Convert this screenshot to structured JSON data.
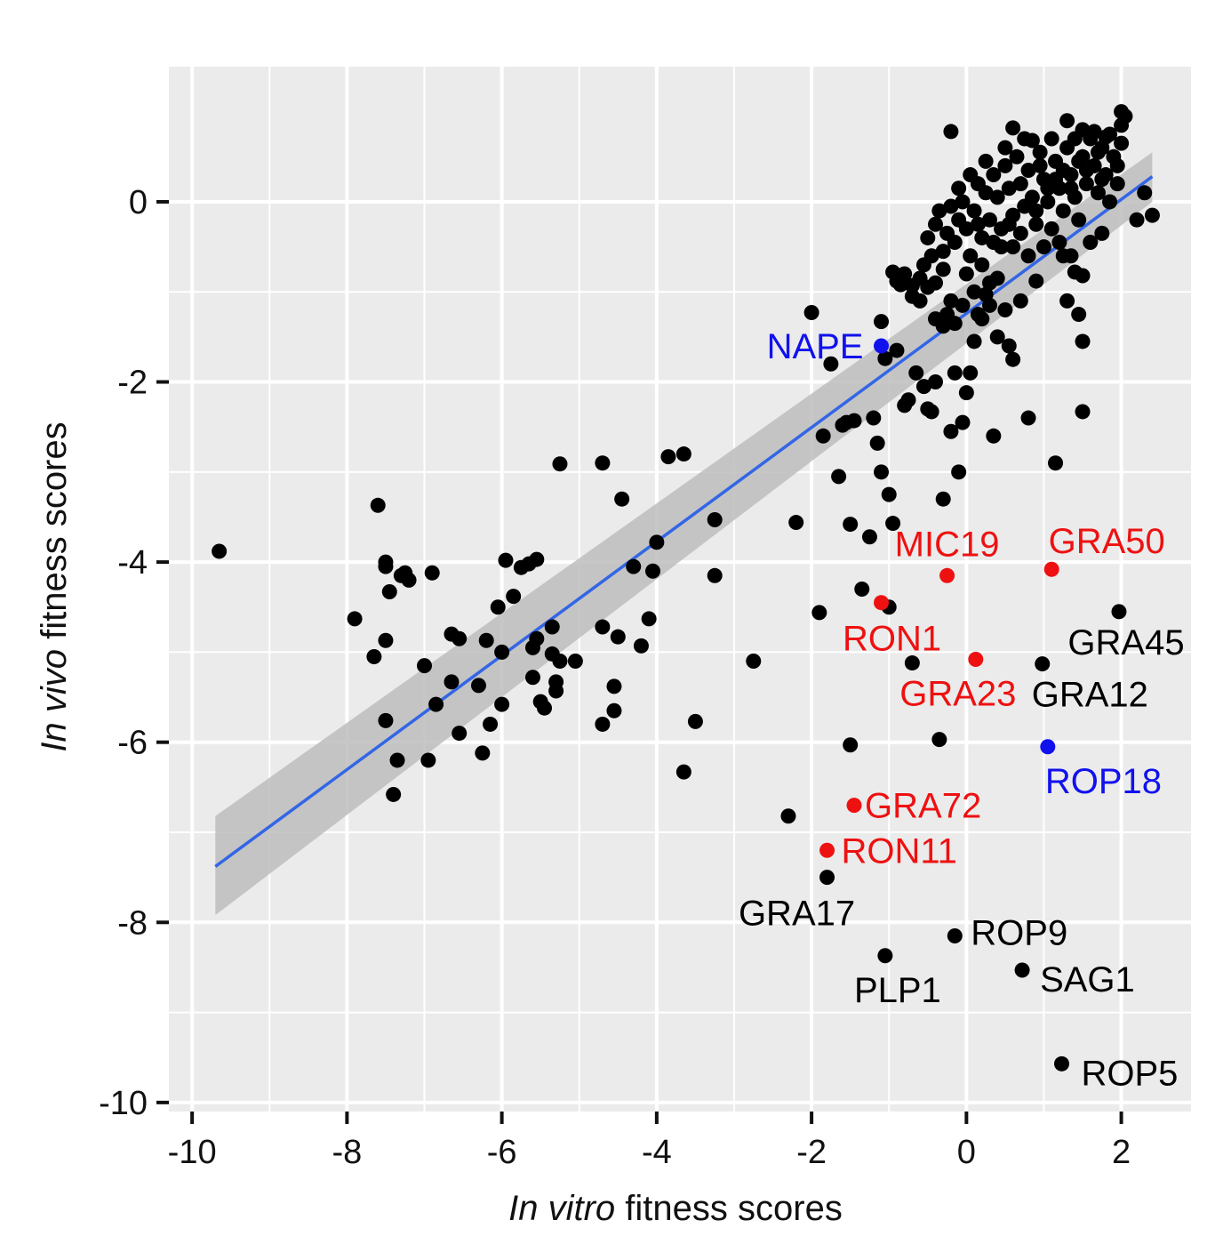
{
  "chart_data": {
    "type": "scatter",
    "title": "",
    "xlabel_italic": "In vitro",
    "xlabel_rest": " fitness scores",
    "ylabel_italic": "In vivo",
    "ylabel_rest": " fitness scores",
    "xlim": [
      -10.3,
      2.9
    ],
    "ylim": [
      -10.1,
      1.5
    ],
    "x_ticks": [
      -10,
      -8,
      -6,
      -4,
      -2,
      0,
      2
    ],
    "x_tick_labels": [
      "-10",
      "-8",
      "-6",
      "-4",
      "-2",
      "0",
      "2"
    ],
    "y_ticks": [
      -10,
      -8,
      -6,
      -4,
      -2,
      0
    ],
    "y_tick_labels": [
      "-10",
      "-8",
      "-6",
      "-4",
      "-2",
      "0"
    ],
    "grid": true,
    "colors": {
      "panel": "#ebebeb",
      "grid": "#ffffff",
      "points": "#000000",
      "fit_line": "#3366e6",
      "ribbon": "#bdbdbd",
      "red": "#ee1111",
      "blue": "#1111ee"
    },
    "fit": {
      "x": [
        -9.7,
        2.4
      ],
      "y": [
        -7.38,
        0.28
      ],
      "ribbon_upper": [
        -6.82,
        0.55
      ],
      "ribbon_lower": [
        -7.92,
        0.0
      ]
    },
    "points": [
      [
        -9.65,
        -3.88
      ],
      [
        -7.6,
        -3.37
      ],
      [
        -7.5,
        -4.0
      ],
      [
        -7.5,
        -4.05
      ],
      [
        -7.45,
        -4.33
      ],
      [
        -7.3,
        -4.15
      ],
      [
        -7.25,
        -4.12
      ],
      [
        -7.2,
        -4.2
      ],
      [
        -6.9,
        -4.12
      ],
      [
        -7.9,
        -4.63
      ],
      [
        -7.5,
        -4.87
      ],
      [
        -7.65,
        -5.05
      ],
      [
        -7.5,
        -5.76
      ],
      [
        -7.35,
        -6.2
      ],
      [
        -7.4,
        -6.58
      ],
      [
        -7.0,
        -5.15
      ],
      [
        -6.95,
        -6.2
      ],
      [
        -6.85,
        -5.58
      ],
      [
        -6.65,
        -4.8
      ],
      [
        -6.55,
        -4.85
      ],
      [
        -6.65,
        -5.33
      ],
      [
        -6.55,
        -5.9
      ],
      [
        -6.3,
        -5.37
      ],
      [
        -6.25,
        -6.12
      ],
      [
        -6.2,
        -4.87
      ],
      [
        -6.15,
        -5.8
      ],
      [
        -6.05,
        -4.5
      ],
      [
        -6.0,
        -5.0
      ],
      [
        -6.0,
        -5.58
      ],
      [
        -5.95,
        -3.98
      ],
      [
        -5.85,
        -4.38
      ],
      [
        -5.75,
        -4.06
      ],
      [
        -5.65,
        -4.02
      ],
      [
        -5.55,
        -3.97
      ],
      [
        -5.6,
        -4.95
      ],
      [
        -5.55,
        -4.85
      ],
      [
        -5.6,
        -5.28
      ],
      [
        -5.5,
        -5.55
      ],
      [
        -5.45,
        -5.62
      ],
      [
        -5.35,
        -4.72
      ],
      [
        -5.35,
        -5.02
      ],
      [
        -5.3,
        -5.33
      ],
      [
        -5.25,
        -5.1
      ],
      [
        -5.3,
        -5.43
      ],
      [
        -5.25,
        -2.91
      ],
      [
        -5.05,
        -5.1
      ],
      [
        -4.7,
        -2.9
      ],
      [
        -4.7,
        -4.72
      ],
      [
        -4.7,
        -5.8
      ],
      [
        -4.55,
        -5.65
      ],
      [
        -4.55,
        -5.38
      ],
      [
        -4.5,
        -4.83
      ],
      [
        -4.45,
        -3.3
      ],
      [
        -4.3,
        -4.05
      ],
      [
        -4.2,
        -4.93
      ],
      [
        -4.1,
        -4.63
      ],
      [
        -4.05,
        -4.1
      ],
      [
        -4.0,
        -3.78
      ],
      [
        -3.85,
        -2.83
      ],
      [
        -3.65,
        -2.8
      ],
      [
        -3.65,
        -6.33
      ],
      [
        -3.5,
        -5.77
      ],
      [
        -3.25,
        -3.53
      ],
      [
        -3.25,
        -4.15
      ],
      [
        -2.75,
        -5.1
      ],
      [
        -2.3,
        -6.82
      ],
      [
        -2.2,
        -3.56
      ],
      [
        -2.0,
        -1.23
      ],
      [
        -1.9,
        -4.56
      ],
      [
        -1.85,
        -2.6
      ],
      [
        -1.75,
        -1.8
      ],
      [
        -1.65,
        -3.05
      ],
      [
        -1.6,
        -2.48
      ],
      [
        -1.55,
        -2.45
      ],
      [
        -1.5,
        -3.58
      ],
      [
        -1.5,
        -6.03
      ],
      [
        -1.45,
        -2.43
      ],
      [
        -1.35,
        -4.3
      ],
      [
        -1.25,
        -3.72
      ],
      [
        -1.2,
        -2.4
      ],
      [
        -1.15,
        -2.68
      ],
      [
        -1.1,
        -1.33
      ],
      [
        -1.1,
        -3.0
      ],
      [
        -1.05,
        -1.74
      ],
      [
        -1.0,
        -4.5
      ],
      [
        -1.0,
        -3.25
      ],
      [
        -0.95,
        -0.78
      ],
      [
        -0.95,
        -3.57
      ],
      [
        -0.9,
        -1.65
      ],
      [
        -0.9,
        -0.88
      ],
      [
        -0.85,
        -0.92
      ],
      [
        -0.8,
        -2.26
      ],
      [
        -0.75,
        -2.2
      ],
      [
        -0.7,
        -0.93
      ],
      [
        -0.7,
        -5.12
      ],
      [
        -0.65,
        -1.9
      ],
      [
        -0.6,
        -0.85
      ],
      [
        -0.55,
        -2.05
      ],
      [
        -0.5,
        -2.3
      ],
      [
        -0.45,
        -2.33
      ],
      [
        -0.4,
        -2.0
      ],
      [
        -0.4,
        -0.9
      ],
      [
        -0.35,
        -5.97
      ],
      [
        -0.3,
        -1.38
      ],
      [
        -0.3,
        -3.3
      ],
      [
        -0.25,
        -1.25
      ],
      [
        -0.2,
        -2.55
      ],
      [
        -0.15,
        -1.9
      ],
      [
        -0.1,
        -3.0
      ],
      [
        -0.05,
        -2.45
      ],
      [
        0.0,
        -2.12
      ],
      [
        0.05,
        -1.9
      ],
      [
        0.1,
        -1.55
      ],
      [
        0.2,
        -1.3
      ],
      [
        0.25,
        -1.03
      ],
      [
        0.3,
        -0.9
      ],
      [
        0.35,
        -2.6
      ],
      [
        0.4,
        -1.5
      ],
      [
        0.5,
        -1.2
      ],
      [
        0.55,
        -1.6
      ],
      [
        0.6,
        -1.75
      ],
      [
        0.7,
        -1.1
      ],
      [
        0.8,
        -2.4
      ],
      [
        0.9,
        -0.88
      ],
      [
        1.15,
        -2.9
      ],
      [
        1.25,
        -0.6
      ],
      [
        1.3,
        -1.1
      ],
      [
        1.4,
        -0.78
      ],
      [
        1.5,
        -0.82
      ],
      [
        1.45,
        -1.25
      ],
      [
        1.5,
        -1.55
      ],
      [
        1.5,
        -2.33
      ],
      [
        1.6,
        -0.45
      ],
      [
        1.75,
        -0.35
      ],
      [
        2.0,
        1.0
      ],
      [
        2.05,
        0.95
      ],
      [
        2.0,
        0.85
      ],
      [
        2.2,
        -0.2
      ],
      [
        2.3,
        0.1
      ],
      [
        2.4,
        -0.15
      ],
      [
        -0.2,
        0.78
      ],
      [
        0.6,
        0.82
      ],
      [
        0.85,
        0.68
      ],
      [
        1.3,
        0.9
      ],
      [
        1.5,
        0.8
      ],
      [
        1.65,
        0.78
      ],
      [
        1.8,
        0.72
      ],
      [
        -0.5,
        -0.4
      ],
      [
        -0.45,
        -0.6
      ],
      [
        -0.4,
        -0.25
      ],
      [
        -0.35,
        -0.1
      ],
      [
        -0.3,
        -0.55
      ],
      [
        -0.25,
        -0.35
      ],
      [
        -0.2,
        -0.05
      ],
      [
        -0.15,
        -0.45
      ],
      [
        -0.1,
        -0.2
      ],
      [
        -0.05,
        0.0
      ],
      [
        0.0,
        -0.3
      ],
      [
        0.05,
        -0.6
      ],
      [
        0.1,
        -0.1
      ],
      [
        0.15,
        0.2
      ],
      [
        0.2,
        -0.4
      ],
      [
        0.25,
        0.1
      ],
      [
        0.3,
        -0.2
      ],
      [
        0.35,
        0.3
      ],
      [
        0.4,
        0.05
      ],
      [
        0.45,
        -0.3
      ],
      [
        0.5,
        0.4
      ],
      [
        0.55,
        0.15
      ],
      [
        0.6,
        -0.15
      ],
      [
        0.65,
        0.5
      ],
      [
        0.7,
        0.2
      ],
      [
        0.75,
        -0.05
      ],
      [
        0.8,
        0.35
      ],
      [
        0.85,
        0.05
      ],
      [
        0.9,
        -0.25
      ],
      [
        0.95,
        0.55
      ],
      [
        1.0,
        0.25
      ],
      [
        1.05,
        0.0
      ],
      [
        1.1,
        -0.3
      ],
      [
        1.15,
        0.45
      ],
      [
        1.2,
        0.15
      ],
      [
        1.25,
        -0.1
      ],
      [
        1.3,
        0.6
      ],
      [
        1.35,
        0.3
      ],
      [
        1.4,
        0.05
      ],
      [
        1.45,
        -0.2
      ],
      [
        1.5,
        0.5
      ],
      [
        1.55,
        0.2
      ],
      [
        1.6,
        0.7
      ],
      [
        1.65,
        0.4
      ],
      [
        1.7,
        0.1
      ],
      [
        1.75,
        0.6
      ],
      [
        1.8,
        0.3
      ],
      [
        1.85,
        0.0
      ],
      [
        1.9,
        0.5
      ],
      [
        1.95,
        0.2
      ],
      [
        2.0,
        0.65
      ],
      [
        1.95,
        0.4
      ],
      [
        1.85,
        0.75
      ],
      [
        1.7,
        0.55
      ],
      [
        1.4,
        0.7
      ],
      [
        1.1,
        0.7
      ],
      [
        0.2,
        -0.7
      ],
      [
        0.0,
        -0.8
      ],
      [
        -0.3,
        -0.75
      ],
      [
        -0.5,
        -0.95
      ],
      [
        -0.6,
        -1.1
      ],
      [
        -0.2,
        -1.1
      ],
      [
        0.1,
        -1.0
      ],
      [
        0.4,
        -0.85
      ],
      [
        0.6,
        -0.5
      ],
      [
        0.8,
        -0.6
      ],
      [
        1.0,
        -0.5
      ],
      [
        -0.15,
        -1.35
      ],
      [
        -0.05,
        -1.15
      ],
      [
        0.15,
        -1.25
      ],
      [
        0.3,
        -1.15
      ],
      [
        -0.4,
        -1.3
      ],
      [
        -0.7,
        -1.05
      ],
      [
        -0.55,
        -0.7
      ],
      [
        -0.8,
        -0.8
      ],
      [
        0.45,
        -0.5
      ],
      [
        0.7,
        -0.35
      ],
      [
        1.2,
        -0.45
      ],
      [
        1.35,
        -0.6
      ],
      [
        0.25,
        0.45
      ],
      [
        0.5,
        0.6
      ],
      [
        0.75,
        0.7
      ],
      [
        0.95,
        0.4
      ],
      [
        1.15,
        0.25
      ],
      [
        1.35,
        0.15
      ],
      [
        1.55,
        0.35
      ],
      [
        1.75,
        0.25
      ],
      [
        0.05,
        0.3
      ],
      [
        -0.1,
        0.15
      ],
      [
        0.15,
        -0.25
      ],
      [
        0.35,
        -0.45
      ],
      [
        0.55,
        -0.25
      ],
      [
        0.9,
        -0.1
      ],
      [
        1.05,
        0.15
      ],
      [
        1.25,
        0.35
      ],
      [
        1.45,
        0.45
      ]
    ],
    "annotations": [
      {
        "label": "NAPE",
        "x": -1.1,
        "y": -1.6,
        "color": "blue",
        "anchor": "end",
        "dx": -20,
        "dy": 14
      },
      {
        "label": "ROP18",
        "x": 1.05,
        "y": -6.05,
        "color": "blue",
        "anchor": "start",
        "dx": -3,
        "dy": 52
      },
      {
        "label": "MIC19",
        "x": -0.25,
        "y": -4.15,
        "color": "red",
        "anchor": "middle",
        "dx": 0,
        "dy": -22
      },
      {
        "label": "GRA50",
        "x": 1.1,
        "y": -4.08,
        "color": "red",
        "anchor": "middle",
        "dx": 62,
        "dy": -18
      },
      {
        "label": "RON1",
        "x": -1.1,
        "y": -4.45,
        "color": "red",
        "anchor": "middle",
        "dx": 12,
        "dy": 54
      },
      {
        "label": "GRA23",
        "x": 0.12,
        "y": -5.08,
        "color": "red",
        "anchor": "middle",
        "dx": -20,
        "dy": 52
      },
      {
        "label": "GRA72",
        "x": -1.45,
        "y": -6.7,
        "color": "red",
        "anchor": "start",
        "dx": 12,
        "dy": 14
      },
      {
        "label": "RON11",
        "x": -1.8,
        "y": -7.2,
        "color": "red",
        "anchor": "start",
        "dx": 16,
        "dy": 14
      },
      {
        "label": "GRA45",
        "x": 1.97,
        "y": -4.55,
        "color": "black",
        "anchor": "middle",
        "dx": 8,
        "dy": 48
      },
      {
        "label": "GRA12",
        "x": 0.98,
        "y": -5.13,
        "color": "black",
        "anchor": "start",
        "dx": -12,
        "dy": 48
      },
      {
        "label": "GRA17",
        "x": -1.8,
        "y": -7.5,
        "color": "black",
        "anchor": "middle",
        "dx": -34,
        "dy": 54
      },
      {
        "label": "ROP9",
        "x": -0.15,
        "y": -8.15,
        "color": "black",
        "anchor": "start",
        "dx": 18,
        "dy": 10
      },
      {
        "label": "PLP1",
        "x": -1.05,
        "y": -8.37,
        "color": "black",
        "anchor": "middle",
        "dx": 14,
        "dy": 52
      },
      {
        "label": "SAG1",
        "x": 0.72,
        "y": -8.53,
        "color": "black",
        "anchor": "start",
        "dx": 20,
        "dy": 24
      },
      {
        "label": "ROP5",
        "x": 1.23,
        "y": -9.57,
        "color": "black",
        "anchor": "start",
        "dx": 22,
        "dy": 24
      }
    ]
  }
}
